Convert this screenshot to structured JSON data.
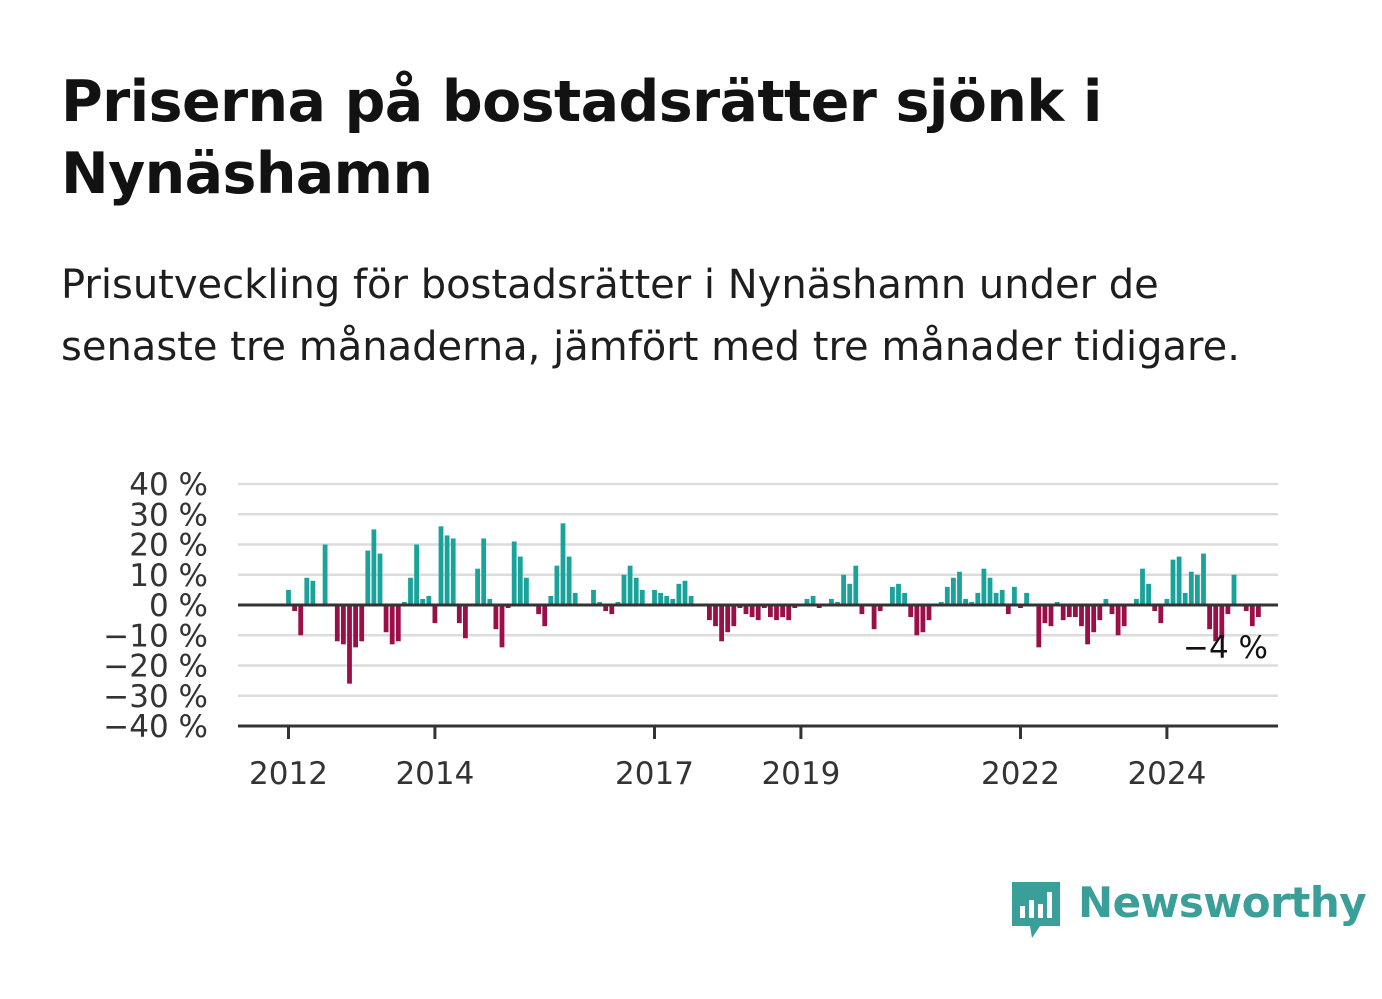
{
  "header": {
    "title": "Priserna på bostadsrätter sjönk i Nynäshamn",
    "subtitle": "Prisutveckling för bostadsrätter i Nynäshamn under de senaste tre månaderna, jämfört med tre månader tidigare."
  },
  "brand": {
    "name": "Newsworthy",
    "color": "#3a9e99",
    "icon": "newsworthy-logo-icon"
  },
  "colors": {
    "positive": "#1aa39a",
    "negative": "#9b0f49",
    "grid": "#dcdcdc",
    "axis": "#333333"
  },
  "chart_data": {
    "type": "bar",
    "title": "",
    "xlabel": "",
    "ylabel": "",
    "ylim": [
      -40,
      40
    ],
    "yticks": [
      40,
      30,
      20,
      10,
      0,
      -10,
      -20,
      -30,
      -40
    ],
    "ytick_labels": [
      "40 %",
      "30 %",
      "20 %",
      "10 %",
      "0 %",
      "−10 %",
      "−20 %",
      "−30 %",
      "−40 %"
    ],
    "xticks": [
      {
        "label": "2012",
        "at": "2012-01"
      },
      {
        "label": "2014",
        "at": "2014-01"
      },
      {
        "label": "2017",
        "at": "2017-01"
      },
      {
        "label": "2019",
        "at": "2019-01"
      },
      {
        "label": "2022",
        "at": "2022-01"
      },
      {
        "label": "2024",
        "at": "2024-01"
      }
    ],
    "x_start": "2012-01",
    "grid": true,
    "annotation": {
      "text": "−4 %",
      "value": -4
    },
    "series": [
      {
        "values": [
          5,
          -2,
          -10,
          9,
          8,
          0,
          20,
          0,
          -12,
          -13,
          -26,
          -14,
          -12,
          18,
          25,
          17,
          -9,
          -13,
          -12,
          1,
          9,
          20,
          2,
          3,
          -6,
          26,
          23,
          22,
          -6,
          -11,
          0,
          12,
          22,
          2,
          -8,
          -14,
          -1,
          21,
          16,
          9,
          0,
          -3,
          -7,
          3,
          13,
          27,
          16,
          4,
          0,
          0,
          5,
          1,
          -2,
          -3,
          1,
          10,
          13,
          9,
          5,
          0,
          5,
          4,
          3,
          2,
          7,
          8,
          3,
          0,
          0,
          -5,
          -7,
          -12,
          -9,
          -7,
          -1,
          -3,
          -4,
          -5,
          -1,
          -4,
          -5,
          -4,
          -5,
          -1,
          0,
          2,
          3,
          -1,
          0,
          2,
          1,
          10,
          7,
          13,
          -3,
          0,
          -8,
          -2,
          0,
          6,
          7,
          4,
          -4,
          -10,
          -9,
          -5,
          0,
          1,
          6,
          9,
          11,
          2,
          1,
          4,
          12,
          9,
          4,
          5,
          -3,
          6,
          -1,
          4,
          0,
          -14,
          -6,
          -7,
          1,
          -5,
          -4,
          -4,
          -7,
          -13,
          -9,
          -5,
          2,
          -3,
          -10,
          -7,
          0,
          2,
          12,
          7,
          -2,
          -6,
          2,
          15,
          16,
          4,
          11,
          10,
          17,
          -8,
          -12,
          -11,
          -3,
          10,
          0,
          -2,
          -7,
          -4
        ]
      }
    ]
  }
}
